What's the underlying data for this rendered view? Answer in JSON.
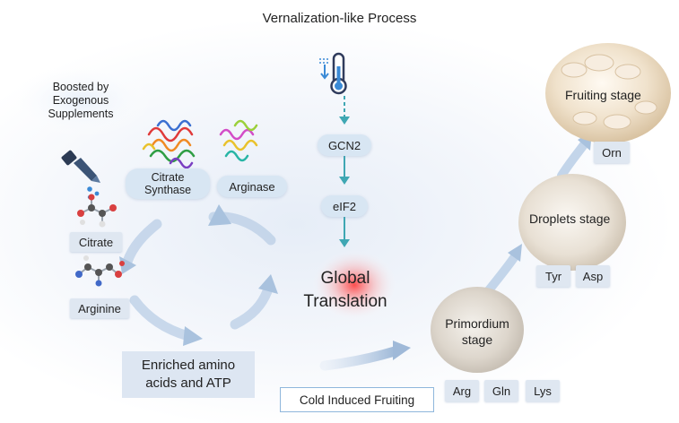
{
  "title": "Vernalization-like Process",
  "supplement_note": "Boosted by Exogenous Supplements",
  "enzymes": {
    "citrate_synthase": "Citrate Synthase",
    "arginase": "Arginase"
  },
  "supplements": {
    "citrate": "Citrate",
    "arginine": "Arginine"
  },
  "pathway": {
    "gcn2": "GCN2",
    "eif2": "eIF2",
    "global_translation": "Global Translation"
  },
  "enriched": "Enriched  amino acids and ATP",
  "cold_induced": "Cold Induced Fruiting",
  "stages": {
    "primordium": {
      "label": "Primordium stage",
      "tags": [
        "Arg",
        "Gln",
        "Lys"
      ]
    },
    "droplets": {
      "label": "Droplets stage",
      "tags": [
        "Tyr",
        "Asp"
      ]
    },
    "fruiting": {
      "label": "Fruiting stage",
      "tags": [
        "Orn"
      ]
    }
  },
  "colors": {
    "arrow_teal": "#3fa7b3",
    "arrow_blue": "#a9c2de",
    "pill_bg": "#d8e6f3",
    "glow_red": "#ff4a4a"
  }
}
